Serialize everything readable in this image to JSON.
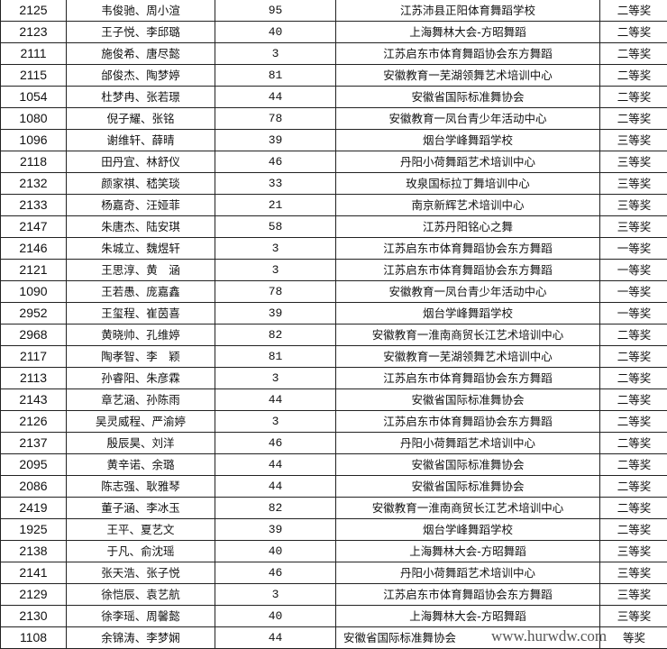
{
  "rows": [
    {
      "id": "2125",
      "names": "韦俊驰、周小渲",
      "count": "95",
      "org": "江苏沛县正阳体育舞蹈学校",
      "award": "二等奖"
    },
    {
      "id": "2123",
      "names": "王子悦、李邱璐",
      "count": "40",
      "org": "上海舞林大会-方昭舞蹈",
      "award": "二等奖"
    },
    {
      "id": "2111",
      "names": "施俊希、唐尽懿",
      "count": "3",
      "org": "江苏启东市体育舞蹈协会东方舞蹈",
      "award": "二等奖"
    },
    {
      "id": "2115",
      "names": "邰俊杰、陶梦婷",
      "count": "81",
      "org": "安徽教育一芜湖领舞艺术培训中心",
      "award": "二等奖"
    },
    {
      "id": "1054",
      "names": "杜梦冉、张若璟",
      "count": "44",
      "org": "安徽省国际标准舞协会",
      "award": "二等奖"
    },
    {
      "id": "1080",
      "names": "倪子耀、张铭",
      "count": "78",
      "org": "安徽教育一凤台青少年活动中心",
      "award": "二等奖"
    },
    {
      "id": "1096",
      "names": "谢维轩、薛晴",
      "count": "39",
      "org": "烟台学峰舞蹈学校",
      "award": "三等奖"
    },
    {
      "id": "2118",
      "names": "田丹宜、林舒仪",
      "count": "46",
      "org": "丹阳小荷舞蹈艺术培训中心",
      "award": "三等奖"
    },
    {
      "id": "2132",
      "names": "颜家祺、嵇笑琰",
      "count": "33",
      "org": "玫泉国标拉丁舞培训中心",
      "award": "三等奖"
    },
    {
      "id": "2133",
      "names": "杨嘉奇、汪娅菲",
      "count": "21",
      "org": "南京新辉艺术培训中心",
      "award": "三等奖"
    },
    {
      "id": "2147",
      "names": "朱唐杰、陆安琪",
      "count": "58",
      "org": "江苏丹阳铭心之舞",
      "award": "三等奖"
    },
    {
      "id": "2146",
      "names": "朱城立、魏煜轩",
      "count": "3",
      "org": "江苏启东市体育舞蹈协会东方舞蹈",
      "award": "一等奖"
    },
    {
      "id": "2121",
      "names": "王思淳、黄　涵",
      "count": "3",
      "org": "江苏启东市体育舞蹈协会东方舞蹈",
      "award": "一等奖"
    },
    {
      "id": "1090",
      "names": "王若愚、庞嘉鑫",
      "count": "78",
      "org": "安徽教育一凤台青少年活动中心",
      "award": "一等奖"
    },
    {
      "id": "2952",
      "names": "王玺程、崔茵喜",
      "count": "39",
      "org": "烟台学峰舞蹈学校",
      "award": "一等奖"
    },
    {
      "id": "2968",
      "names": "黄晓帅、孔维婷",
      "count": "82",
      "org": "安徽教育一淮南商贸长江艺术培训中心",
      "award": "二等奖"
    },
    {
      "id": "2117",
      "names": "陶孝智、李　颖",
      "count": "81",
      "org": "安徽教育一芜湖领舞艺术培训中心",
      "award": "二等奖"
    },
    {
      "id": "2113",
      "names": "孙睿阳、朱彦霖",
      "count": "3",
      "org": "江苏启东市体育舞蹈协会东方舞蹈",
      "award": "二等奖"
    },
    {
      "id": "2143",
      "names": "章艺涵、孙陈雨",
      "count": "44",
      "org": "安徽省国际标准舞协会",
      "award": "二等奖"
    },
    {
      "id": "2126",
      "names": "吴灵威程、严渝婷",
      "count": "3",
      "org": "江苏启东市体育舞蹈协会东方舞蹈",
      "award": "二等奖"
    },
    {
      "id": "2137",
      "names": "殷辰昊、刘洋",
      "count": "46",
      "org": "丹阳小荷舞蹈艺术培训中心",
      "award": "二等奖"
    },
    {
      "id": "2095",
      "names": "黄辛诺、余璐",
      "count": "44",
      "org": "安徽省国际标准舞协会",
      "award": "二等奖"
    },
    {
      "id": "2086",
      "names": "陈志强、耿雅琴",
      "count": "44",
      "org": "安徽省国际标准舞协会",
      "award": "二等奖"
    },
    {
      "id": "2419",
      "names": "董子涵、李冰玉",
      "count": "82",
      "org": "安徽教育一淮南商贸长江艺术培训中心",
      "award": "二等奖"
    },
    {
      "id": "1925",
      "names": "王平、夏艺文",
      "count": "39",
      "org": "烟台学峰舞蹈学校",
      "award": "二等奖"
    },
    {
      "id": "2138",
      "names": "于凡、俞沈瑶",
      "count": "40",
      "org": "上海舞林大会-方昭舞蹈",
      "award": "三等奖"
    },
    {
      "id": "2141",
      "names": "张天浩、张子悦",
      "count": "46",
      "org": "丹阳小荷舞蹈艺术培训中心",
      "award": "三等奖"
    },
    {
      "id": "2129",
      "names": "徐恺辰、袁艺航",
      "count": "3",
      "org": "江苏启东市体育舞蹈协会东方舞蹈",
      "award": "三等奖"
    },
    {
      "id": "2130",
      "names": "徐李瑶、周馨懿",
      "count": "40",
      "org": "上海舞林大会-方昭舞蹈",
      "award": "三等奖"
    },
    {
      "id": "1108",
      "names": "余锦涛、李梦娴",
      "count": "44",
      "org": "安徽省国际标准舞协会",
      "award": "等奖"
    }
  ],
  "watermark": "www.hurwdw.com"
}
